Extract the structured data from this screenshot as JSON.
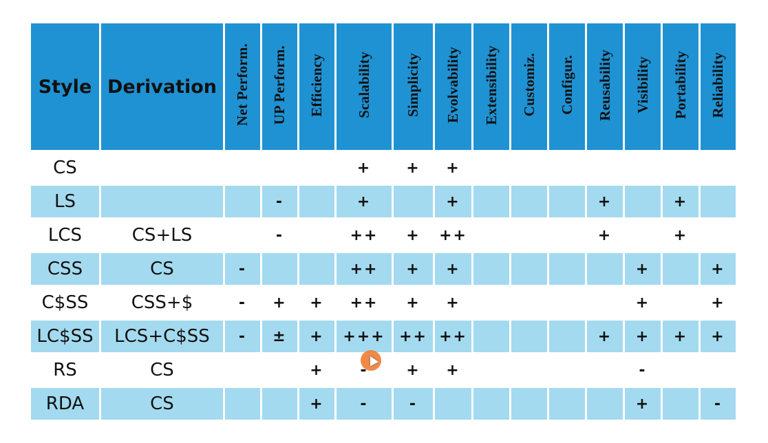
{
  "headers": {
    "style": "Style",
    "derivation": "Derivation",
    "properties": [
      "Net Perform.",
      "UP Perform.",
      "Efficiency",
      "Scalability",
      "Simplicity",
      "Evolvability",
      "Extensibility",
      "Customiz.",
      "Configur.",
      "Reusability",
      "Visibility",
      "Portability",
      "Reliability"
    ]
  },
  "rows": [
    {
      "style": "CS",
      "derivation": "",
      "cells": [
        "",
        "",
        "",
        "+",
        "+",
        "+",
        "",
        "",
        "",
        "",
        "",
        "",
        ""
      ]
    },
    {
      "style": "LS",
      "derivation": "",
      "cells": [
        "",
        "-",
        "",
        "+",
        "",
        "+",
        "",
        "",
        "",
        "+",
        "",
        "+",
        ""
      ]
    },
    {
      "style": "LCS",
      "derivation": "CS+LS",
      "cells": [
        "",
        "-",
        "",
        "++",
        "+",
        "++",
        "",
        "",
        "",
        "+",
        "",
        "+",
        ""
      ]
    },
    {
      "style": "CSS",
      "derivation": "CS",
      "cells": [
        "-",
        "",
        "",
        "++",
        "+",
        "+",
        "",
        "",
        "",
        "",
        "+",
        "",
        "+"
      ]
    },
    {
      "style": "C$SS",
      "derivation": "CSS+$",
      "cells": [
        "-",
        "+",
        "+",
        "++",
        "+",
        "+",
        "",
        "",
        "",
        "",
        "+",
        "",
        "+"
      ]
    },
    {
      "style": "LC$SS",
      "derivation": "LCS+C$SS",
      "cells": [
        "-",
        "±",
        "+",
        "+++",
        "++",
        "++",
        "",
        "",
        "",
        "+",
        "+",
        "+",
        "+"
      ]
    },
    {
      "style": "RS",
      "derivation": "CS",
      "cells": [
        "",
        "",
        "+",
        "-",
        "+",
        "+",
        "",
        "",
        "",
        "",
        "-",
        "",
        ""
      ]
    },
    {
      "style": "RDA",
      "derivation": "CS",
      "cells": [
        "",
        "",
        "+",
        "-",
        "-",
        "",
        "",
        "",
        "",
        "",
        "+",
        "",
        "-"
      ]
    }
  ],
  "colors": {
    "header": "#1f92d3",
    "shade": "#a3daef",
    "plain": "#ffffff",
    "cursor": "#ef7d33"
  }
}
